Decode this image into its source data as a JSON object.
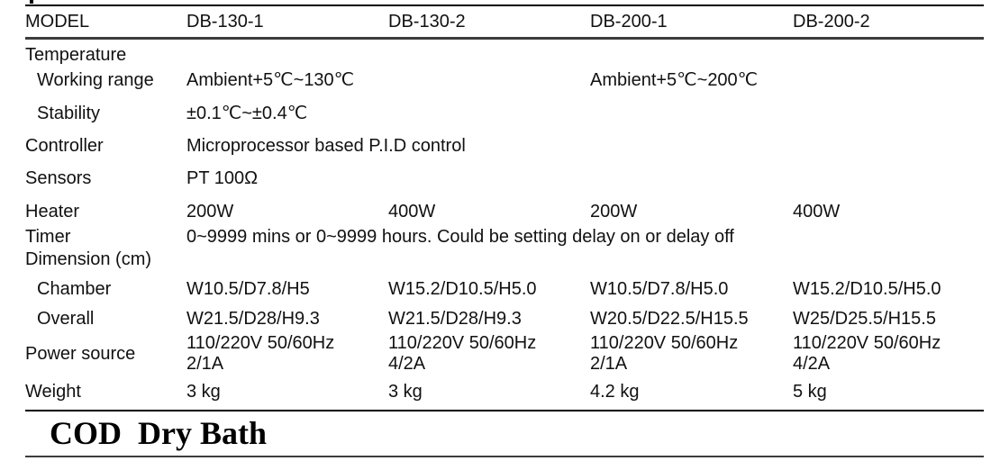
{
  "colors": {
    "background": "#ffffff",
    "text": "#111111",
    "rule_black": "#000000",
    "rule_dark_gray": "#3c3c3c"
  },
  "table": {
    "header": {
      "label": "MODEL",
      "models": [
        "DB-130-1",
        "DB-130-2",
        "DB-200-1",
        "DB-200-2"
      ]
    },
    "rows": [
      {
        "label": "Temperature",
        "cells": []
      },
      {
        "label": "Working range",
        "cells": [
          {
            "text": "Ambient+5℃~130℃",
            "span": 2
          },
          {
            "text": "Ambient+5℃~200℃",
            "span": 2
          }
        ]
      },
      {
        "label": "Stability",
        "cells": [
          {
            "text": "±0.1℃~±0.4℃",
            "span": 4
          }
        ]
      },
      {
        "label": "Controller",
        "cells": [
          {
            "text": "Microprocessor based P.I.D control",
            "span": 4
          }
        ]
      },
      {
        "label": "Sensors",
        "cells": [
          {
            "text": "PT 100Ω",
            "span": 4
          }
        ]
      },
      {
        "label": "Heater",
        "cells": [
          {
            "text": "200W"
          },
          {
            "text": "400W"
          },
          {
            "text": "200W"
          },
          {
            "text": "400W"
          }
        ]
      },
      {
        "label": "Timer",
        "cells": [
          {
            "text": "0~9999 mins or 0~9999 hours. Could be setting delay on or delay off",
            "span": 4
          }
        ]
      },
      {
        "label": "Dimension (cm)",
        "cells": []
      },
      {
        "label": "Chamber",
        "cells": [
          {
            "text": "W10.5/D7.8/H5"
          },
          {
            "text": "W15.2/D10.5/H5.0"
          },
          {
            "text": "W10.5/D7.8/H5.0"
          },
          {
            "text": "W15.2/D10.5/H5.0"
          }
        ]
      },
      {
        "label": "Overall",
        "cells": [
          {
            "text": "W21.5/D28/H9.3"
          },
          {
            "text": "W21.5/D28/H9.3"
          },
          {
            "text": "W20.5/D22.5/H15.5"
          },
          {
            "text": "W25/D25.5/H15.5"
          }
        ]
      },
      {
        "label": "Power source",
        "cells": [
          {
            "text": "110/220V 50/60Hz\n2/1A"
          },
          {
            "text": "110/220V 50/60Hz\n4/2A"
          },
          {
            "text": "110/220V 50/60Hz\n2/1A"
          },
          {
            "text": "110/220V 50/60Hz\n4/2A"
          }
        ]
      },
      {
        "label": "Weight",
        "cells": [
          {
            "text": "3 kg"
          },
          {
            "text": "3 kg"
          },
          {
            "text": "4.2 kg"
          },
          {
            "text": "5 kg"
          }
        ]
      }
    ]
  },
  "footer": {
    "title": "COD  Dry Bath"
  }
}
